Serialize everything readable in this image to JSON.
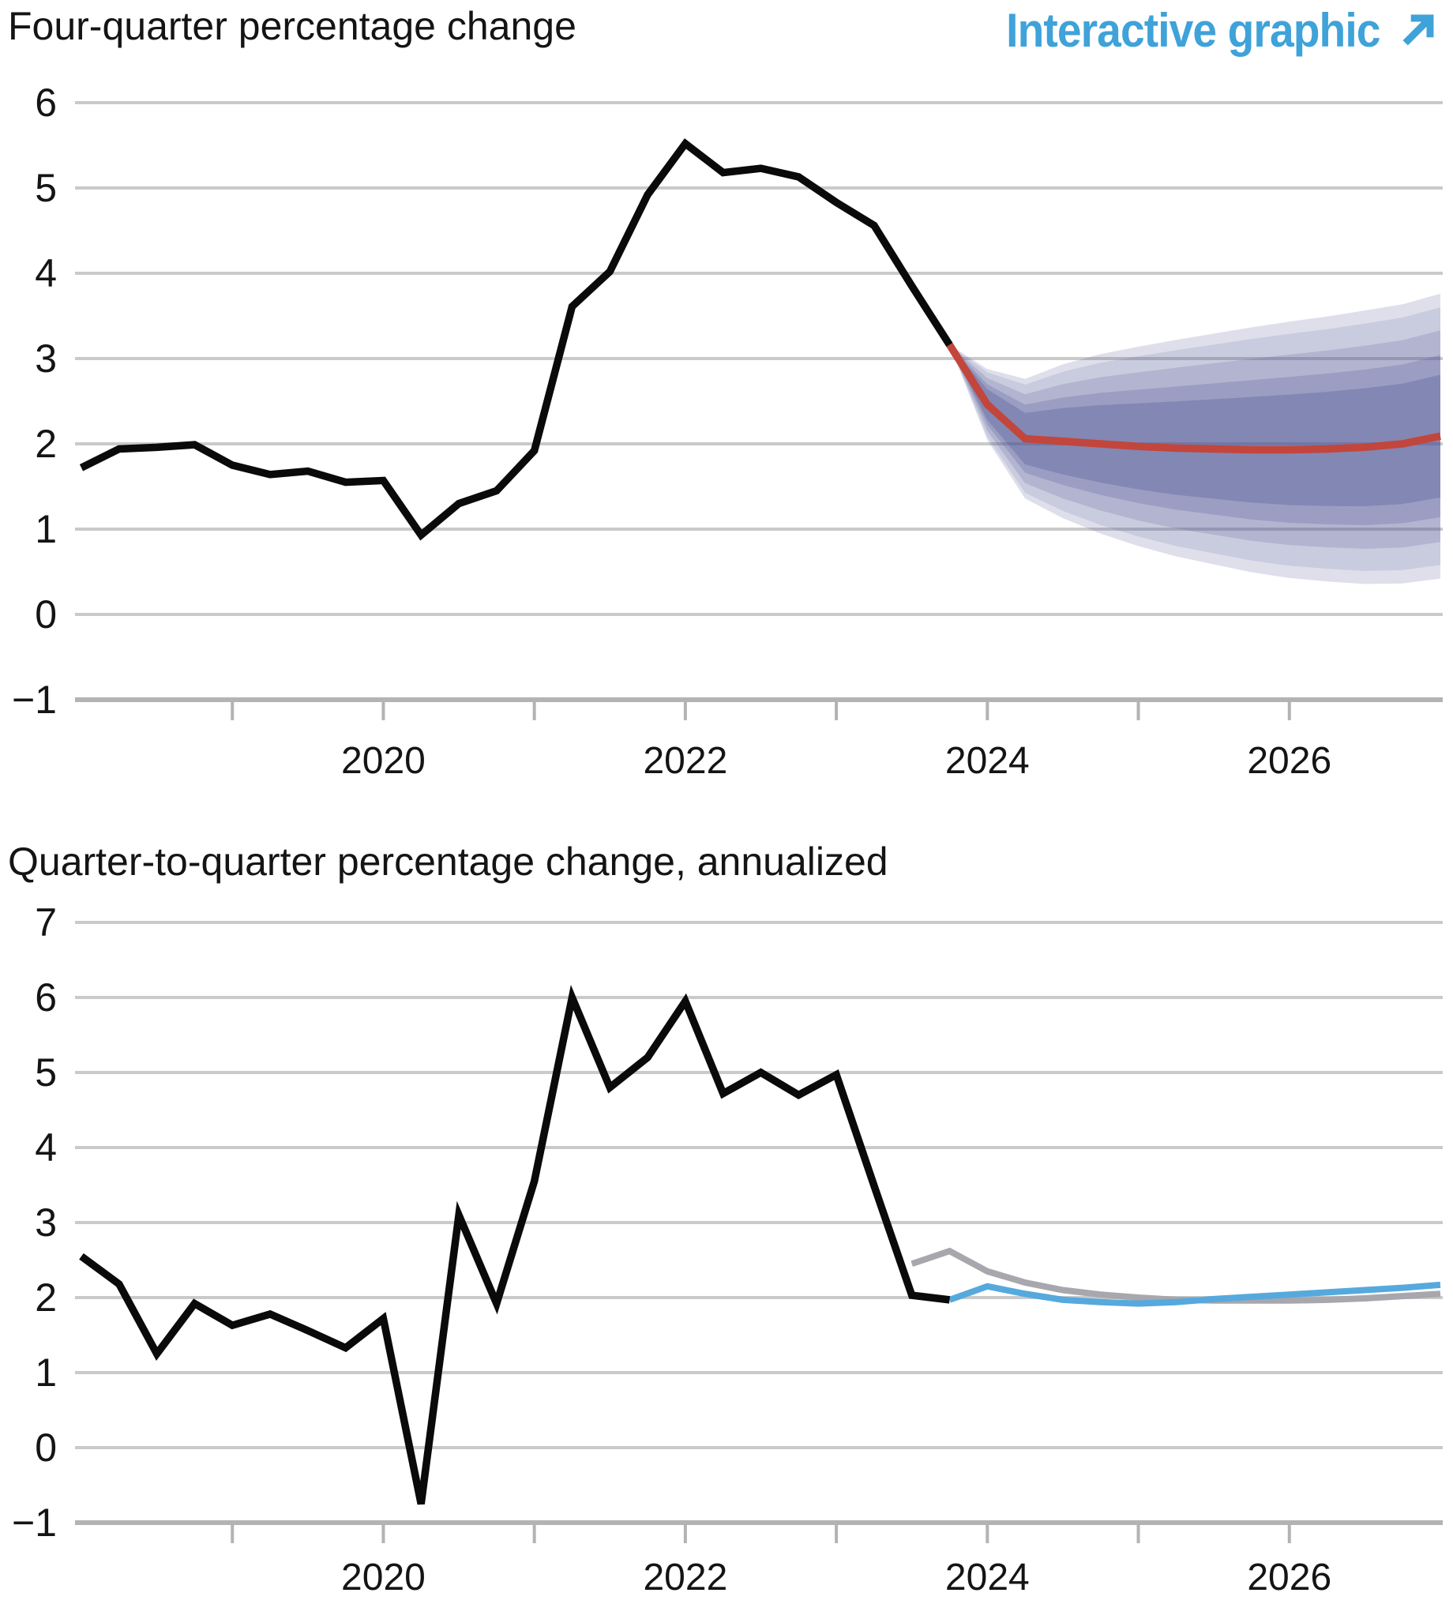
{
  "header": {
    "link_label": "Interactive graphic",
    "link_color": "#3fa2d9",
    "arrow_icon": "arrow-up-right"
  },
  "palette": {
    "historical": "#0a0a0a",
    "forecast_red": "#c2463c",
    "previous_forecast_gray": "#a7a7ad",
    "current_forecast_blue": "#56a9dd",
    "gridline": "#cacaca",
    "axis": "#b3b3b3",
    "fan_base_rgb": [
      80,
      87,
      148
    ]
  },
  "chart_data": [
    {
      "type": "line",
      "title": "Four-quarter percentage change",
      "xlabel": "",
      "ylabel": "",
      "x_domain": [
        2018,
        2027
      ],
      "ylim": [
        -1,
        6
      ],
      "grid": "horizontal",
      "x_axis": {
        "tick_years": [
          2019,
          2020,
          2021,
          2022,
          2023,
          2024,
          2025,
          2026
        ],
        "label_years": [
          2020,
          2022,
          2024,
          2026
        ],
        "labels": [
          "2020",
          "2022",
          "2024",
          "2026"
        ]
      },
      "y_axis": {
        "gridlines": [
          6,
          5,
          4,
          3,
          2,
          1,
          0
        ],
        "axis_value": -1,
        "tick_values": [
          6,
          5,
          4,
          3,
          2,
          1,
          0,
          -1
        ],
        "tick_labels": [
          "6",
          "5",
          "4",
          "3",
          "2",
          "1",
          "0",
          "−1"
        ]
      },
      "series": [
        {
          "name": "historical",
          "color": "#0a0a0a",
          "width": 9.5,
          "x": [
            2018,
            2018.25,
            2018.5,
            2018.75,
            2019,
            2019.25,
            2019.5,
            2019.75,
            2020,
            2020.25,
            2020.5,
            2020.75,
            2021,
            2021.25,
            2021.5,
            2021.75,
            2022,
            2022.25,
            2022.5,
            2022.75,
            2023,
            2023.25,
            2023.5,
            2023.75
          ],
          "values": [
            1.72,
            1.94,
            1.96,
            1.99,
            1.75,
            1.64,
            1.68,
            1.55,
            1.57,
            0.93,
            1.3,
            1.45,
            1.92,
            3.61,
            4.02,
            4.92,
            5.52,
            5.18,
            5.23,
            5.13,
            4.83,
            4.56,
            3.85,
            3.16
          ]
        },
        {
          "name": "forecast",
          "color": "#c2463c",
          "width": 9.5,
          "x": [
            2023.75,
            2024,
            2024.25,
            2024.5,
            2024.75,
            2025,
            2025.25,
            2025.5,
            2025.75,
            2026,
            2026.25,
            2026.5,
            2026.75,
            2027
          ],
          "values": [
            3.16,
            2.46,
            2.06,
            2.03,
            2.0,
            1.97,
            1.95,
            1.94,
            1.93,
            1.93,
            1.94,
            1.96,
            2.0,
            2.09
          ]
        }
      ],
      "fan": {
        "x": [
          2023.75,
          2024,
          2024.25,
          2024.5,
          2024.75,
          2025,
          2025.25,
          2025.5,
          2025.75,
          2026,
          2026.25,
          2026.5,
          2026.75,
          2027
        ],
        "center": [
          3.16,
          2.46,
          2.06,
          2.03,
          2.0,
          1.97,
          1.95,
          1.94,
          1.93,
          1.93,
          1.94,
          1.96,
          2.0,
          2.09
        ],
        "growth": [
          0,
          0.25,
          0.42,
          0.54,
          0.63,
          0.7,
          0.76,
          0.81,
          0.86,
          0.9,
          0.93,
          0.96,
          0.98,
          1.0
        ],
        "half_widths": [
          1.67,
          1.51,
          1.24,
          0.95,
          0.72
        ],
        "alphas": [
          0.19,
          0.14,
          0.19,
          0.23,
          0.32
        ]
      }
    },
    {
      "type": "line",
      "title": "Quarter-to-quarter percentage change, annualized",
      "xlabel": "",
      "ylabel": "",
      "x_domain": [
        2018,
        2027
      ],
      "ylim": [
        -1,
        7
      ],
      "grid": "horizontal",
      "x_axis": {
        "tick_years": [
          2019,
          2020,
          2021,
          2022,
          2023,
          2024,
          2025,
          2026
        ],
        "label_years": [
          2020,
          2022,
          2024,
          2026
        ],
        "labels": [
          "2020",
          "2022",
          "2024",
          "2026"
        ]
      },
      "y_axis": {
        "gridlines": [
          7,
          6,
          5,
          4,
          3,
          2,
          1,
          0
        ],
        "axis_value": -1,
        "tick_values": [
          7,
          6,
          5,
          4,
          3,
          2,
          1,
          0,
          -1
        ],
        "tick_labels": [
          "7",
          "6",
          "5",
          "4",
          "3",
          "2",
          "1",
          "0",
          "−1"
        ]
      },
      "series": [
        {
          "name": "previous-forecast",
          "color": "#a7a7ad",
          "width": 8,
          "x": [
            2023.5,
            2023.75,
            2024,
            2024.25,
            2024.5,
            2024.75,
            2025,
            2025.25,
            2025.5,
            2025.75,
            2026,
            2026.25,
            2026.5,
            2026.75,
            2027
          ],
          "values": [
            2.45,
            2.62,
            2.35,
            2.2,
            2.1,
            2.04,
            2.0,
            1.97,
            1.96,
            1.96,
            1.96,
            1.97,
            1.99,
            2.02,
            2.05
          ]
        },
        {
          "name": "current-forecast",
          "color": "#56a9dd",
          "width": 8,
          "x": [
            2023.75,
            2024,
            2024.25,
            2024.5,
            2024.75,
            2025,
            2025.25,
            2025.5,
            2025.75,
            2026,
            2026.25,
            2026.5,
            2026.75,
            2027
          ],
          "values": [
            1.97,
            2.15,
            2.05,
            1.97,
            1.94,
            1.92,
            1.94,
            1.98,
            2.01,
            2.04,
            2.07,
            2.1,
            2.13,
            2.17
          ]
        },
        {
          "name": "historical",
          "color": "#0a0a0a",
          "width": 9.5,
          "x": [
            2018,
            2018.25,
            2018.5,
            2018.75,
            2019,
            2019.25,
            2019.5,
            2019.75,
            2020,
            2020.25,
            2020.5,
            2020.75,
            2021,
            2021.25,
            2021.5,
            2021.75,
            2022,
            2022.25,
            2022.5,
            2022.75,
            2023,
            2023.25,
            2023.5,
            2023.75
          ],
          "values": [
            2.55,
            2.18,
            1.25,
            1.92,
            1.63,
            1.78,
            1.56,
            1.33,
            1.72,
            -0.75,
            3.1,
            1.92,
            3.55,
            6.0,
            4.8,
            5.2,
            5.95,
            4.72,
            5.0,
            4.7,
            4.97,
            3.49,
            2.03,
            1.97
          ]
        }
      ]
    }
  ]
}
